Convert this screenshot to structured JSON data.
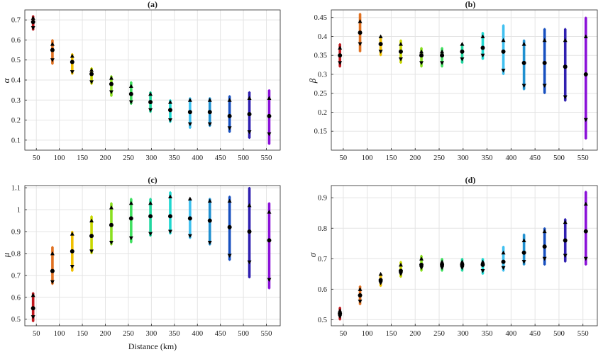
{
  "chart_data": [
    {
      "type": "scatter",
      "title": "(a)",
      "xlabel": "",
      "ylabel": "α",
      "xlim": [
        25,
        580
      ],
      "ylim": [
        0.05,
        0.75
      ],
      "xticks": [
        50,
        100,
        150,
        200,
        250,
        300,
        350,
        400,
        450,
        500,
        550
      ],
      "yticks": [
        0.1,
        0.2,
        0.3,
        0.4,
        0.5,
        0.6,
        0.7
      ],
      "grid": true,
      "x": [
        43,
        85,
        128,
        170,
        213,
        256,
        298,
        341,
        384,
        427,
        470,
        513,
        556
      ],
      "series": [
        {
          "marker": "mean",
          "values": [
            0.69,
            0.55,
            0.49,
            0.43,
            0.38,
            0.33,
            0.29,
            0.25,
            0.24,
            0.24,
            0.22,
            0.23,
            0.22
          ]
        },
        {
          "marker": "upper",
          "values": [
            0.71,
            0.58,
            0.52,
            0.45,
            0.41,
            0.37,
            0.33,
            0.29,
            0.3,
            0.3,
            0.3,
            0.31,
            0.31
          ]
        },
        {
          "marker": "lower",
          "values": [
            0.66,
            0.5,
            0.44,
            0.39,
            0.34,
            0.29,
            0.25,
            0.2,
            0.18,
            0.18,
            0.16,
            0.14,
            0.13
          ]
        },
        {
          "marker": "max",
          "values": [
            0.72,
            0.6,
            0.53,
            0.46,
            0.42,
            0.39,
            0.34,
            0.3,
            0.31,
            0.31,
            0.32,
            0.34,
            0.35
          ]
        },
        {
          "marker": "min",
          "values": [
            0.65,
            0.48,
            0.43,
            0.38,
            0.32,
            0.28,
            0.24,
            0.19,
            0.16,
            0.17,
            0.14,
            0.11,
            0.08
          ]
        }
      ]
    },
    {
      "type": "scatter",
      "title": "(b)",
      "xlabel": "",
      "ylabel": "β",
      "xlim": [
        25,
        580
      ],
      "ylim": [
        0.1,
        0.47
      ],
      "xticks": [
        50,
        100,
        150,
        200,
        250,
        300,
        350,
        400,
        450,
        500,
        550
      ],
      "yticks": [
        0.15,
        0.2,
        0.25,
        0.3,
        0.35,
        0.4,
        0.45
      ],
      "grid": true,
      "x": [
        43,
        85,
        128,
        170,
        213,
        256,
        298,
        341,
        384,
        427,
        470,
        513,
        556
      ],
      "series": [
        {
          "marker": "mean",
          "values": [
            0.35,
            0.41,
            0.38,
            0.36,
            0.35,
            0.35,
            0.36,
            0.37,
            0.36,
            0.33,
            0.33,
            0.32,
            0.3
          ]
        },
        {
          "marker": "upper",
          "values": [
            0.37,
            0.44,
            0.4,
            0.38,
            0.36,
            0.36,
            0.38,
            0.4,
            0.39,
            0.38,
            0.39,
            0.39,
            0.4
          ]
        },
        {
          "marker": "lower",
          "values": [
            0.33,
            0.38,
            0.36,
            0.34,
            0.33,
            0.33,
            0.34,
            0.35,
            0.31,
            0.27,
            0.27,
            0.24,
            0.18
          ]
        },
        {
          "marker": "max",
          "values": [
            0.38,
            0.46,
            0.4,
            0.39,
            0.37,
            0.37,
            0.38,
            0.41,
            0.43,
            0.39,
            0.42,
            0.42,
            0.45
          ]
        },
        {
          "marker": "min",
          "values": [
            0.32,
            0.36,
            0.35,
            0.33,
            0.32,
            0.32,
            0.33,
            0.34,
            0.3,
            0.26,
            0.25,
            0.23,
            0.13
          ]
        }
      ]
    },
    {
      "type": "scatter",
      "title": "(c)",
      "xlabel": "Distance (km)",
      "ylabel": "μ",
      "xlim": [
        25,
        580
      ],
      "ylim": [
        0.47,
        1.11
      ],
      "xticks": [
        50,
        100,
        150,
        200,
        250,
        300,
        350,
        400,
        450,
        500,
        550
      ],
      "yticks": [
        0.5,
        0.6,
        0.7,
        0.8,
        0.9,
        1,
        1.1
      ],
      "grid": true,
      "x": [
        43,
        85,
        128,
        170,
        213,
        256,
        298,
        341,
        384,
        427,
        470,
        513,
        556
      ],
      "series": [
        {
          "marker": "mean",
          "values": [
            0.55,
            0.72,
            0.81,
            0.88,
            0.93,
            0.96,
            0.97,
            0.97,
            0.96,
            0.95,
            0.92,
            0.9,
            0.86
          ]
        },
        {
          "marker": "upper",
          "values": [
            0.61,
            0.8,
            0.89,
            0.95,
            1.01,
            1.03,
            1.03,
            1.06,
            1.05,
            1.04,
            1.04,
            1.02,
            0.99
          ]
        },
        {
          "marker": "lower",
          "values": [
            0.51,
            0.67,
            0.74,
            0.81,
            0.85,
            0.87,
            0.89,
            0.9,
            0.88,
            0.85,
            0.79,
            0.76,
            0.68
          ]
        },
        {
          "marker": "max",
          "values": [
            0.62,
            0.83,
            0.9,
            0.97,
            1.03,
            1.05,
            1.05,
            1.08,
            1.05,
            1.05,
            1.06,
            1.1,
            1.03
          ]
        },
        {
          "marker": "min",
          "values": [
            0.49,
            0.66,
            0.72,
            0.8,
            0.84,
            0.85,
            0.88,
            0.89,
            0.87,
            0.84,
            0.77,
            0.69,
            0.64
          ]
        }
      ]
    },
    {
      "type": "scatter",
      "title": "(d)",
      "xlabel": "",
      "ylabel": "σ",
      "xlim": [
        25,
        580
      ],
      "ylim": [
        0.48,
        0.94
      ],
      "xticks": [
        50,
        100,
        150,
        200,
        250,
        300,
        350,
        400,
        450,
        500,
        550
      ],
      "yticks": [
        0.5,
        0.6,
        0.7,
        0.8,
        0.9
      ],
      "grid": true,
      "x": [
        43,
        85,
        128,
        170,
        213,
        256,
        298,
        341,
        384,
        427,
        470,
        513,
        556
      ],
      "series": [
        {
          "marker": "mean",
          "values": [
            0.52,
            0.58,
            0.63,
            0.66,
            0.68,
            0.68,
            0.68,
            0.68,
            0.69,
            0.72,
            0.74,
            0.76,
            0.79
          ]
        },
        {
          "marker": "upper",
          "values": [
            0.53,
            0.6,
            0.65,
            0.68,
            0.7,
            0.69,
            0.69,
            0.69,
            0.72,
            0.76,
            0.79,
            0.82,
            0.88
          ]
        },
        {
          "marker": "lower",
          "values": [
            0.51,
            0.56,
            0.62,
            0.65,
            0.67,
            0.67,
            0.67,
            0.66,
            0.67,
            0.69,
            0.7,
            0.71,
            0.7
          ]
        },
        {
          "marker": "max",
          "values": [
            0.54,
            0.61,
            0.65,
            0.69,
            0.71,
            0.7,
            0.7,
            0.7,
            0.74,
            0.78,
            0.8,
            0.83,
            0.92
          ]
        },
        {
          "marker": "min",
          "values": [
            0.5,
            0.55,
            0.61,
            0.64,
            0.66,
            0.66,
            0.66,
            0.65,
            0.66,
            0.68,
            0.68,
            0.69,
            0.68
          ]
        }
      ]
    }
  ],
  "colors": {
    "groups": [
      "#c0181e",
      "#e07020",
      "#f0c000",
      "#c8d800",
      "#8ae020",
      "#40e060",
      "#20d8a0",
      "#20d8d0",
      "#40c0f0",
      "#2090d0",
      "#1850c0",
      "#3020b0",
      "#8a10d8"
    ],
    "marker": "#000000",
    "grid": "#e4e4e4",
    "axis": "#262626"
  }
}
